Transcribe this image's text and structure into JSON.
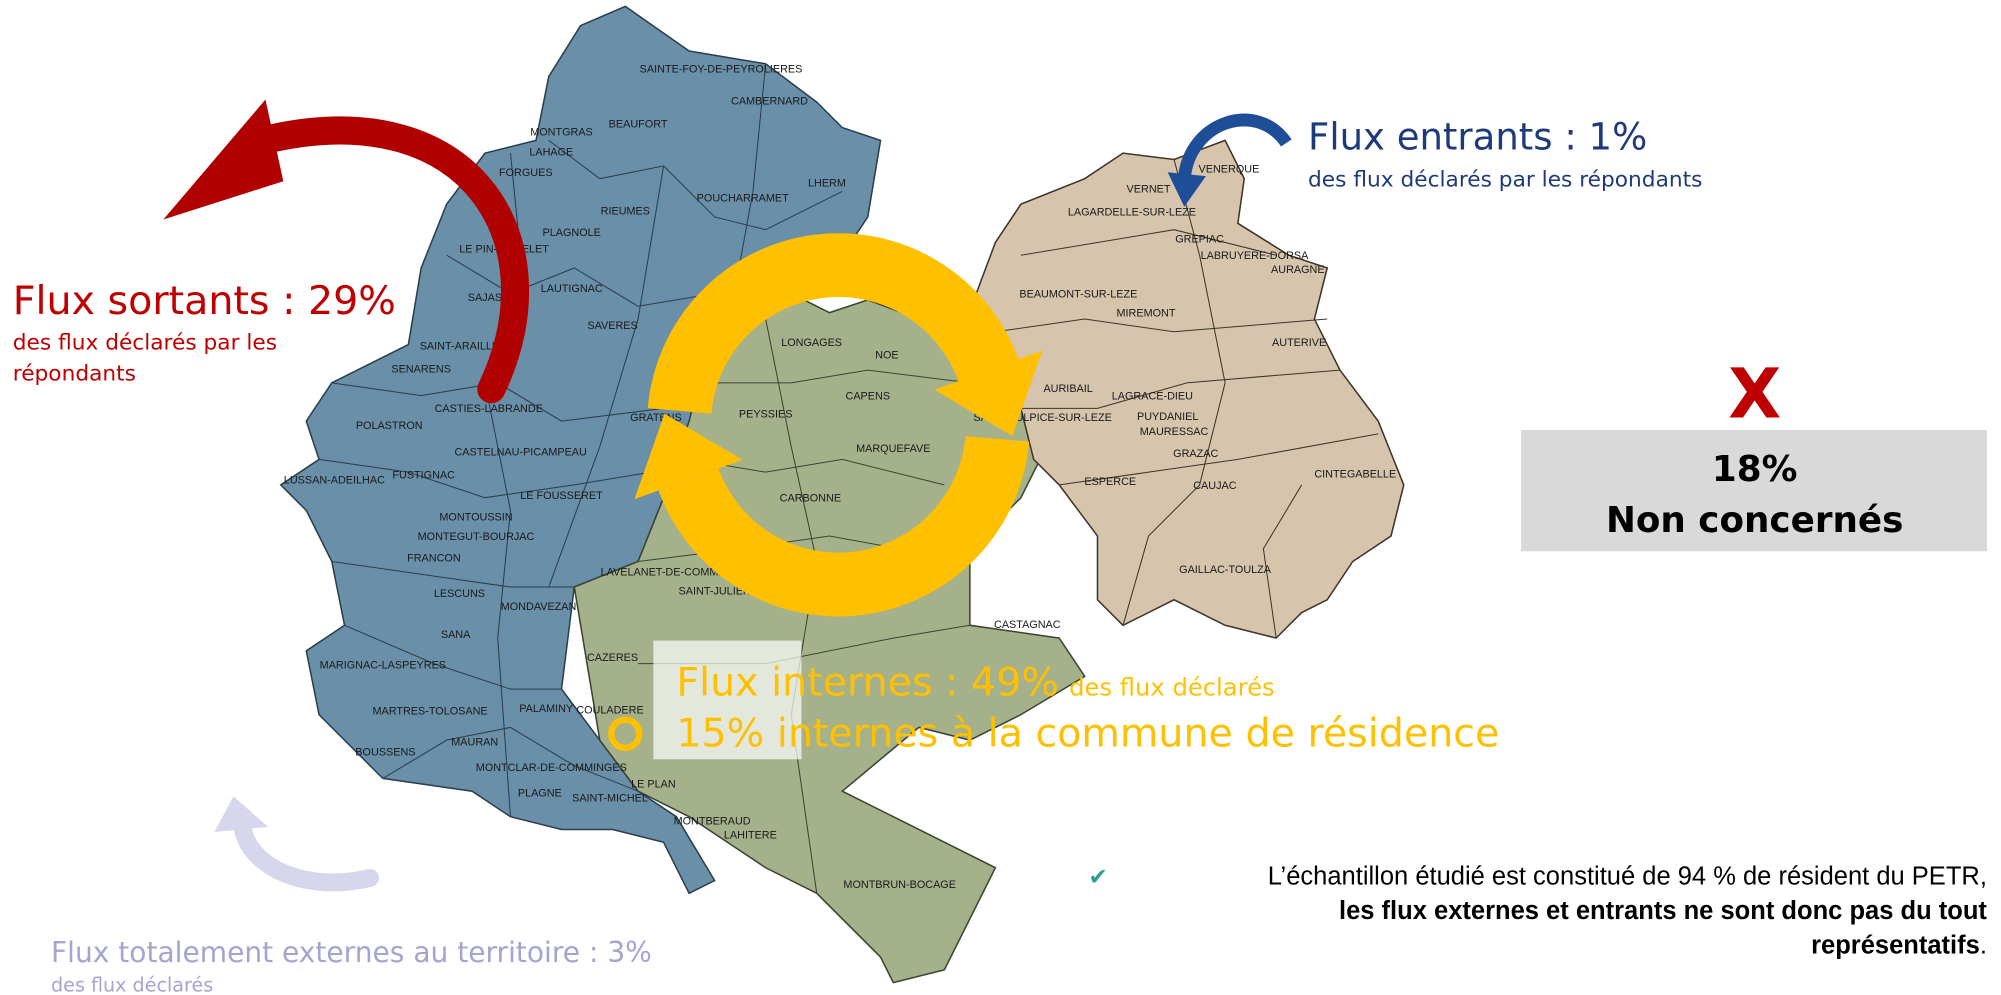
{
  "outgoing": {
    "title": "Flux sortants : 29%",
    "subtitle": [
      "des flux déclarés par les",
      "répondants"
    ]
  },
  "incoming": {
    "title": "Flux entrants : 1%",
    "subtitle": "des flux déclarés par les répondants"
  },
  "not_concerned": {
    "mark": "X",
    "value": "18%",
    "label": "Non concernés"
  },
  "internal": {
    "title": "Flux internes : 49%",
    "subtitle": "des flux déclarés",
    "detail": "15% internes à la commune de résidence"
  },
  "external": {
    "title": "Flux totalement externes au territoire : 3%",
    "subtitle": "des flux déclarés"
  },
  "note": {
    "icon": "✔",
    "lines": [
      "L’échantillon étudié est constitué de 94 % de résident du PETR,",
      "les flux externes et entrants ne sont donc pas du tout"
    ],
    "bold_end": "représentatifs",
    "end": "."
  },
  "communes": [
    "SAINTE-FOY-DE-PEYROLIERES",
    "CAMBERNARD",
    "MONTGRAS",
    "BEAUFORT",
    "LAHAGE",
    "FORGUES",
    "LHERM",
    "POUCHARRAMET",
    "RIEUMES",
    "PLAGNOLE",
    "LE PIN-MURELET",
    "LAUTIGNAC",
    "SAJAS",
    "SAVERES",
    "SAINT-ARAILLE",
    "SENARENS",
    "CASTIES-LABRANDE",
    "GRATENS",
    "POLASTRON",
    "CASTELNAU-PICAMPEAU",
    "LUSSAN-ADEILHAC",
    "FUSTIGNAC",
    "LE FOUSSERET",
    "MONTOUSSIN",
    "MONTEGUT-BOURJAC",
    "FRANCON",
    "LESCUNS",
    "MONDAVEZAN",
    "SANA",
    "CAZERES",
    "MARIGNAC-LASPEYRES",
    "MARTRES-TOLOSANE",
    "PALAMINY",
    "COULADERE",
    "MAURAN",
    "BOUSSENS",
    "MONTCLAR-DE-COMMINGES",
    "PLAGNE",
    "SAINT-MICHEL",
    "LE PLAN",
    "MONTBERAUD",
    "LAHITERE",
    "MONTBRUN-BOCAGE",
    "LONGAGES",
    "NOE",
    "CAPENS",
    "PEYSSIES",
    "MARQUEFAVE",
    "CARBONNE",
    "LAVELANET-DE-COMMINGES",
    "SAINT-JULIEN",
    "CASTAGNAC",
    "VENERQUE",
    "VERNET",
    "LAGARDELLE-SUR-LEZE",
    "GREPIAC",
    "LABRUYERE-DORSA",
    "AURAGNE",
    "BEAUMONT-SUR-LEZE",
    "MIREMONT",
    "AUTERIVE",
    "AURIBAIL",
    "LAGRACE-DIEU",
    "SAINT-SULPICE-SUR-LEZE",
    "PUYDANIEL",
    "MAURESSAC",
    "GRAZAC",
    "ESPERCE",
    "CAUJAC",
    "CINTEGABELLE",
    "GAILLAC-TOULZA"
  ]
}
